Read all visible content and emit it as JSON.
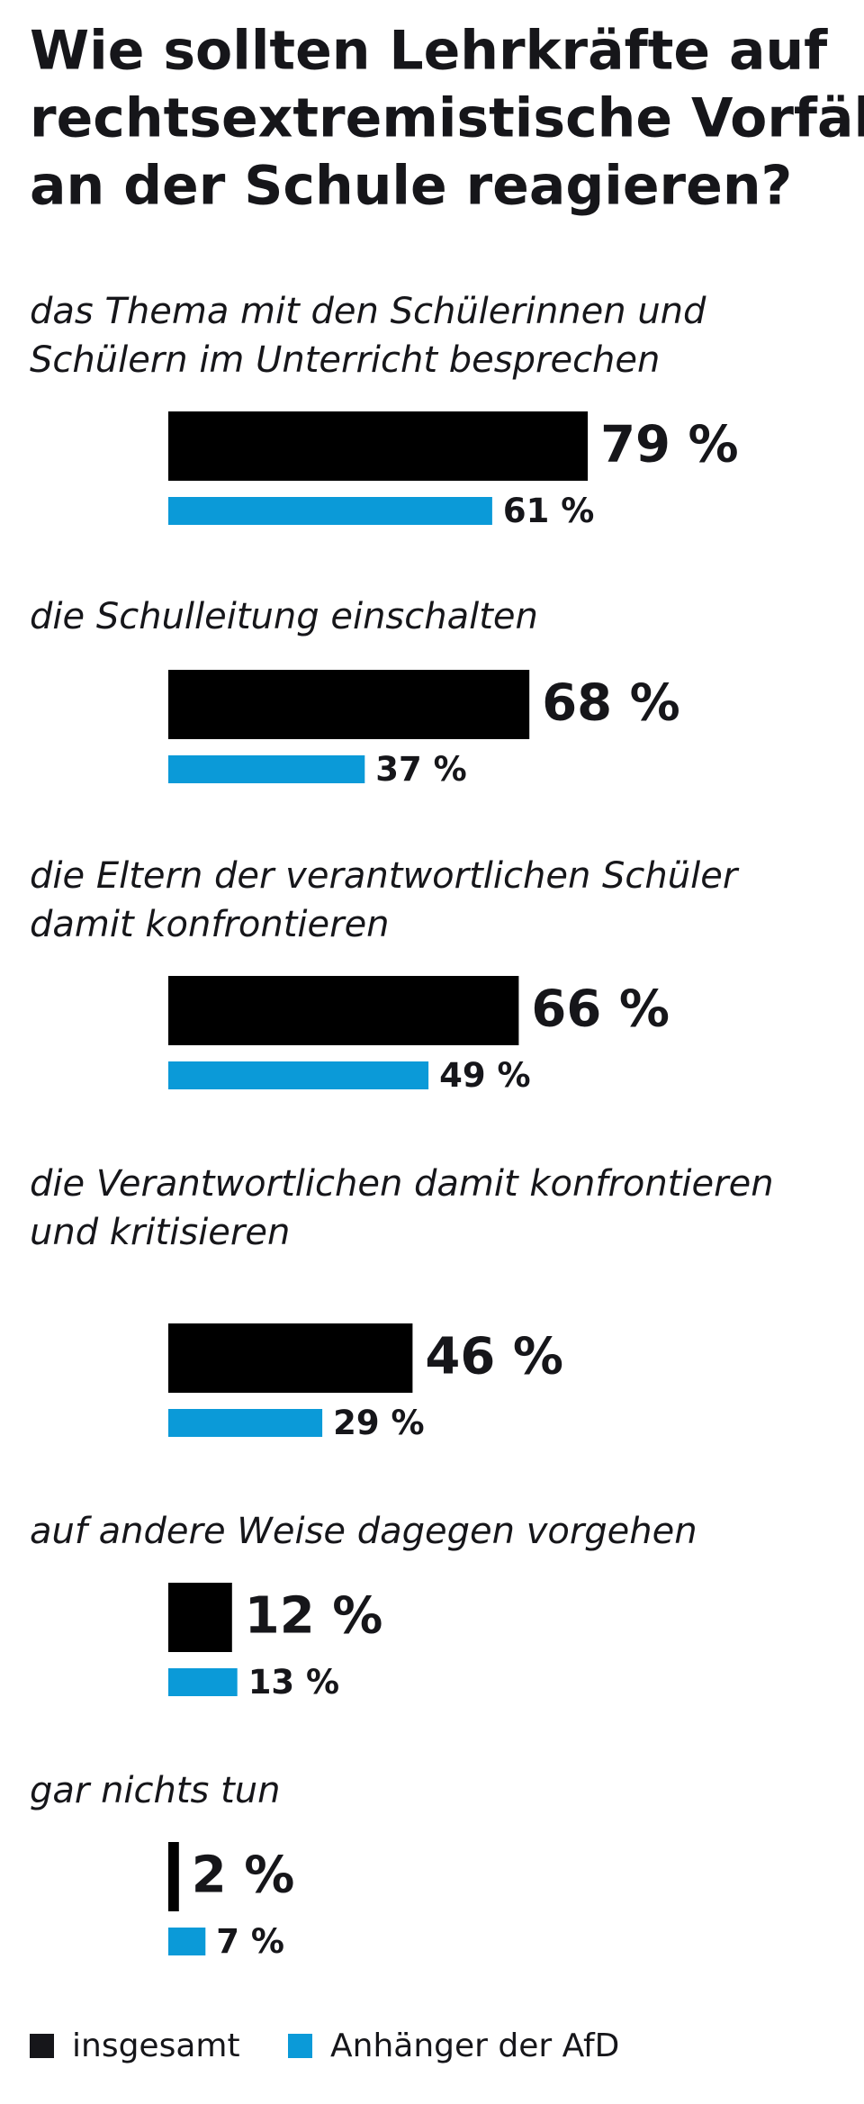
{
  "chart_data": {
    "type": "bar",
    "title": [
      "Wie sollten Lehrkräfte auf",
      "rechtsextremistische Vorfälle",
      "an der Schule reagieren?"
    ],
    "categories": [
      [
        "das Thema mit den Schülerinnen und",
        "Schülern im Unterricht besprechen"
      ],
      [
        "die Schulleitung einschalten"
      ],
      [
        "die Eltern der verantwortlichen Schüler",
        "damit konfrontieren"
      ],
      [
        "die Verantwortlichen damit konfrontieren",
        "und kritisieren"
      ],
      [
        "auf andere Weise dagegen vorgehen"
      ],
      [
        "gar nichts tun"
      ]
    ],
    "series": [
      {
        "name": "insgesamt",
        "color": "#000000",
        "values": [
          79,
          68,
          66,
          46,
          12,
          2
        ],
        "value_labels": [
          "79 %",
          "68 %",
          "66 %",
          "46 %",
          "12 %",
          "2 %"
        ]
      },
      {
        "name": "Anhänger der AfD",
        "color": "#0b9ad8",
        "values": [
          61,
          37,
          49,
          29,
          13,
          7
        ],
        "value_labels": [
          "61 %",
          "37 %",
          "49 %",
          "29 %",
          "13 %",
          "7 %"
        ]
      }
    ]
  }
}
